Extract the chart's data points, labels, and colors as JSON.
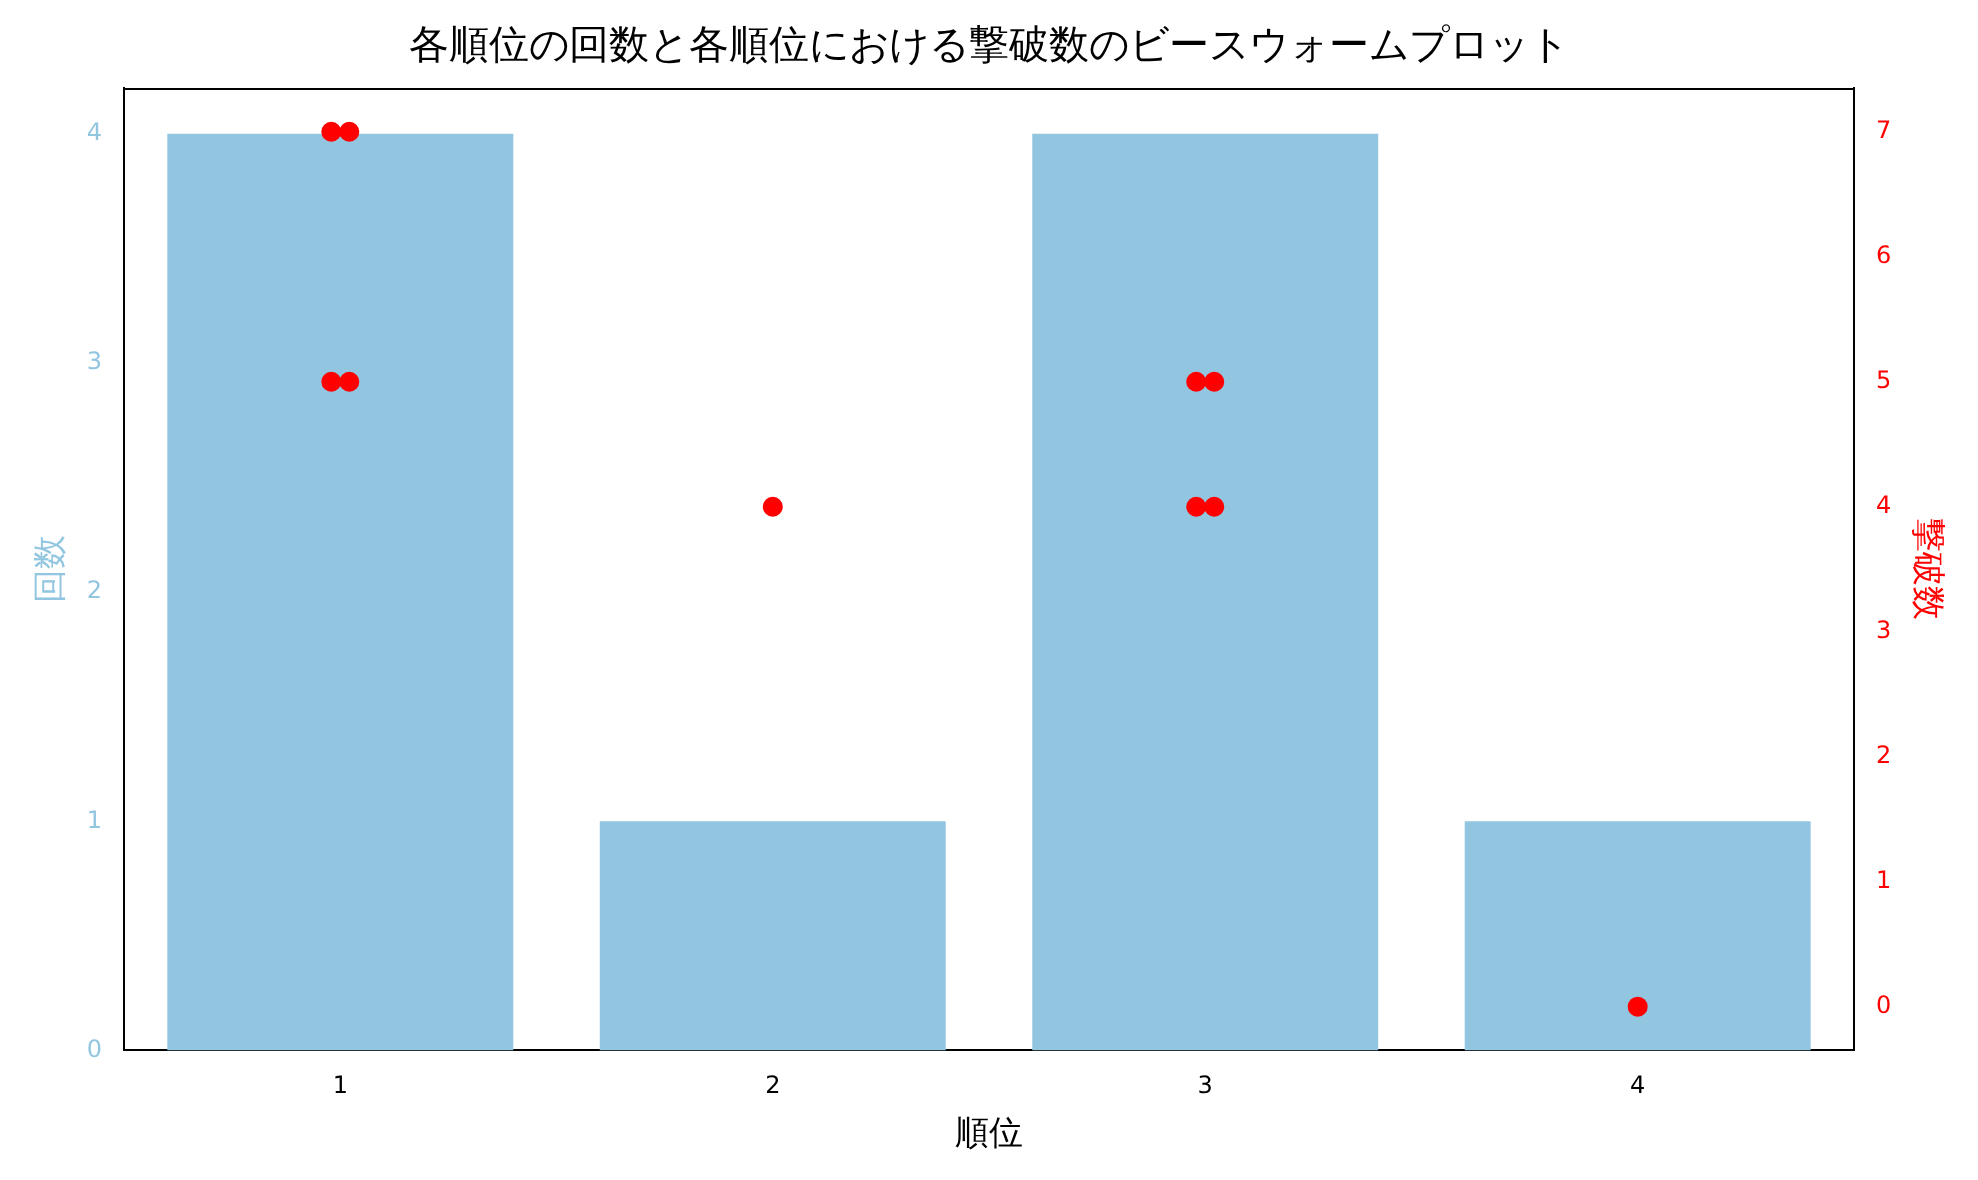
{
  "chart_data": {
    "type": "bar",
    "title": "各順位の回数と各順位における撃破数のビースウォームプロット",
    "xlabel": "順位",
    "ylabel": "回数",
    "y2label": "撃破数",
    "categories": [
      "1",
      "2",
      "3",
      "4"
    ],
    "series": [
      {
        "color": "#92c6e0",
        "values": [
          4,
          1,
          4,
          1
        ]
      },
      {
        "type": "scatter",
        "axis": "y2",
        "color": "#ff0000",
        "marker": "circle",
        "x": [
          "1",
          "1",
          "1",
          "1",
          "2",
          "3",
          "3",
          "3",
          "3",
          "4"
        ],
        "values": [
          7,
          7,
          5,
          5,
          4,
          5,
          5,
          4,
          4,
          0
        ]
      }
    ],
    "ylim": [
      0,
      4.2
    ],
    "yticks": [
      0,
      1,
      2,
      3,
      4
    ],
    "y2lim": [
      -0.35,
      7.35
    ],
    "y2ticks": [
      0,
      1,
      2,
      3,
      4,
      5,
      6,
      7
    ],
    "grid": false
  }
}
